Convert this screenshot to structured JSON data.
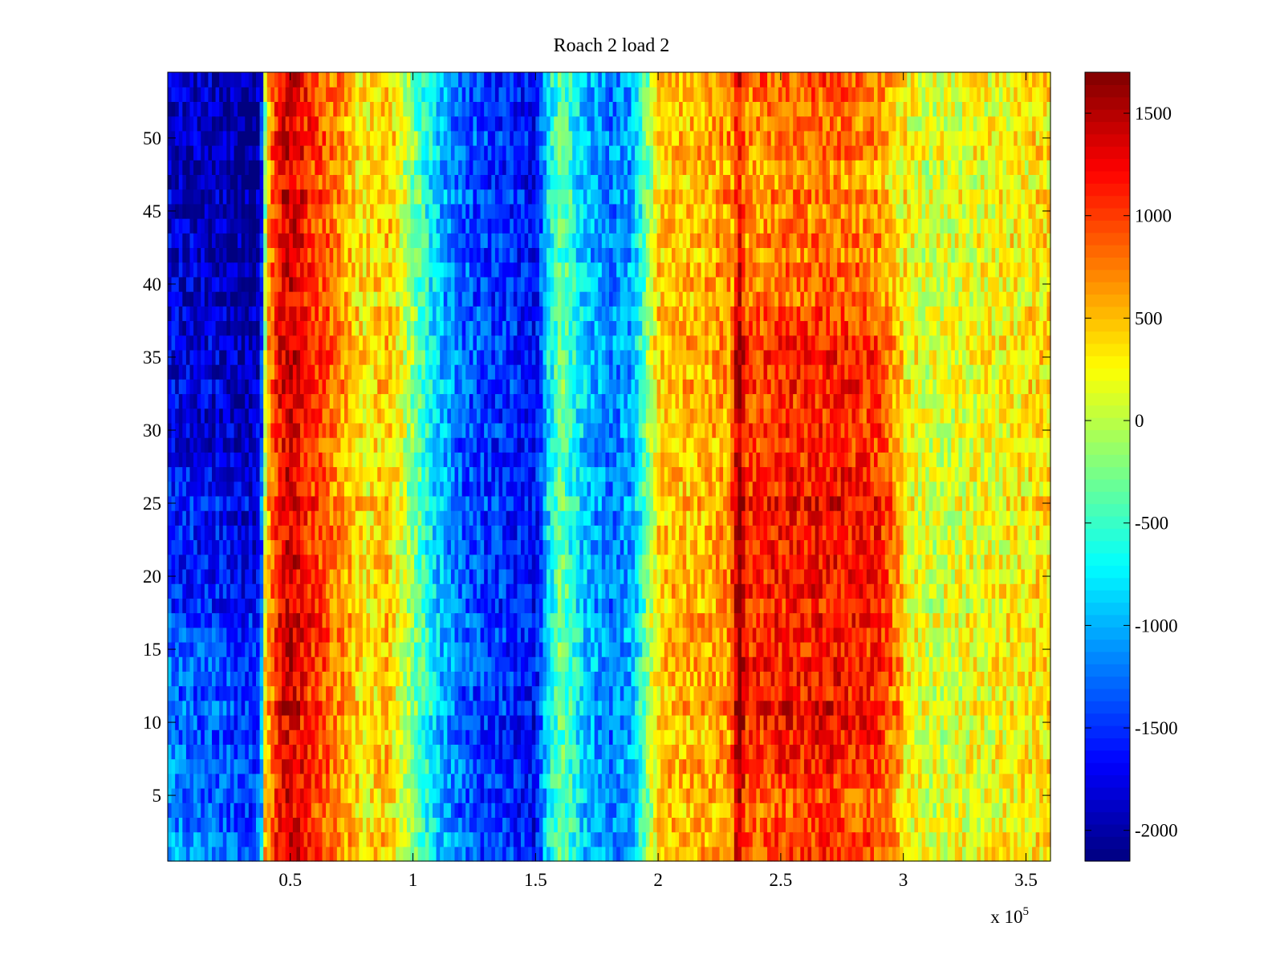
{
  "chart_data": {
    "type": "heatmap",
    "title": "Roach 2 load 2",
    "xlabel": "",
    "ylabel": "",
    "x_multiplier_label": {
      "base": "x 10",
      "exponent": "5"
    },
    "xlim": [
      0,
      3.6
    ],
    "ylim": [
      0.5,
      54.5
    ],
    "x_ticks": [
      {
        "value": 0.5,
        "label": "0.5"
      },
      {
        "value": 1,
        "label": "1"
      },
      {
        "value": 1.5,
        "label": "1.5"
      },
      {
        "value": 2,
        "label": "2"
      },
      {
        "value": 2.5,
        "label": "2.5"
      },
      {
        "value": 3,
        "label": "3"
      },
      {
        "value": 3.5,
        "label": "3.5"
      }
    ],
    "y_ticks": [
      {
        "value": 5,
        "label": "5"
      },
      {
        "value": 10,
        "label": "10"
      },
      {
        "value": 15,
        "label": "15"
      },
      {
        "value": 20,
        "label": "20"
      },
      {
        "value": 25,
        "label": "25"
      },
      {
        "value": 30,
        "label": "30"
      },
      {
        "value": 35,
        "label": "35"
      },
      {
        "value": 40,
        "label": "40"
      },
      {
        "value": 45,
        "label": "45"
      },
      {
        "value": 50,
        "label": "50"
      }
    ],
    "rows": 54,
    "colormap": "jet",
    "colorbar": {
      "range": [
        -2150,
        1700
      ],
      "ticks": [
        {
          "value": 1500,
          "label": "1500"
        },
        {
          "value": 1000,
          "label": "1000"
        },
        {
          "value": 500,
          "label": "500"
        },
        {
          "value": 0,
          "label": "0"
        },
        {
          "value": -500,
          "label": "-500"
        },
        {
          "value": -1000,
          "label": "-1000"
        },
        {
          "value": -1500,
          "label": "-1500"
        },
        {
          "value": -2000,
          "label": "-2000"
        }
      ]
    },
    "column_profile": {
      "x": [
        0.0,
        0.2,
        0.35,
        0.38,
        0.4,
        0.45,
        0.5,
        0.6,
        0.7,
        0.8,
        0.9,
        1.0,
        1.1,
        1.2,
        1.3,
        1.4,
        1.5,
        1.55,
        1.6,
        1.7,
        1.8,
        1.9,
        2.0,
        2.05,
        2.2,
        2.3,
        2.33,
        2.36,
        2.5,
        2.7,
        2.9,
        3.0,
        3.1,
        3.3,
        3.6
      ],
      "values": [
        -1500,
        -1600,
        -1750,
        -1500,
        400,
        1200,
        1400,
        1000,
        700,
        300,
        500,
        -200,
        -900,
        -1300,
        -1450,
        -1500,
        -1700,
        -800,
        -300,
        -900,
        -1200,
        -1000,
        400,
        500,
        550,
        700,
        1500,
        800,
        900,
        950,
        850,
        300,
        100,
        200,
        350
      ]
    },
    "row_modulation": {
      "y": [
        1,
        5,
        10,
        15,
        20,
        25,
        30,
        35,
        40,
        45,
        50,
        54
      ],
      "left_band_offset": [
        400,
        300,
        250,
        200,
        -50,
        0,
        -200,
        -250,
        -300,
        -350,
        -400,
        -300
      ],
      "right_band_offset": [
        50,
        0,
        350,
        200,
        250,
        300,
        150,
        150,
        -100,
        -200,
        -200,
        0
      ]
    }
  }
}
